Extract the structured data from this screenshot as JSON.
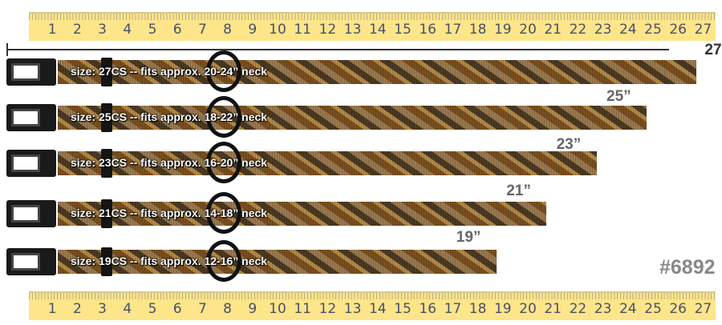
{
  "ruler": {
    "numbers": [
      "1",
      "2",
      "3",
      "4",
      "5",
      "6",
      "7",
      "8",
      "9",
      "10",
      "11",
      "12",
      "13",
      "14",
      "15",
      "16",
      "17",
      "18",
      "19",
      "20",
      "21",
      "22",
      "23",
      "24",
      "25",
      "26",
      "27"
    ],
    "color": "#fde58a"
  },
  "collars": [
    {
      "label": "size: 27CS -- fits approx. 20-24” neck",
      "length": "27”",
      "inches": 27
    },
    {
      "label": "size: 25CS -- fits approx. 18-22” neck",
      "length": "25”",
      "inches": 25
    },
    {
      "label": "size: 23CS -- fits approx. 16-20” neck",
      "length": "23”",
      "inches": 23
    },
    {
      "label": "size: 21CS -- fits approx. 14-18” neck",
      "length": "21”",
      "inches": 21
    },
    {
      "label": "size: 19CS -- fits approx. 12-16” neck",
      "length": "19”",
      "inches": 19
    }
  ],
  "sku": "#6892"
}
